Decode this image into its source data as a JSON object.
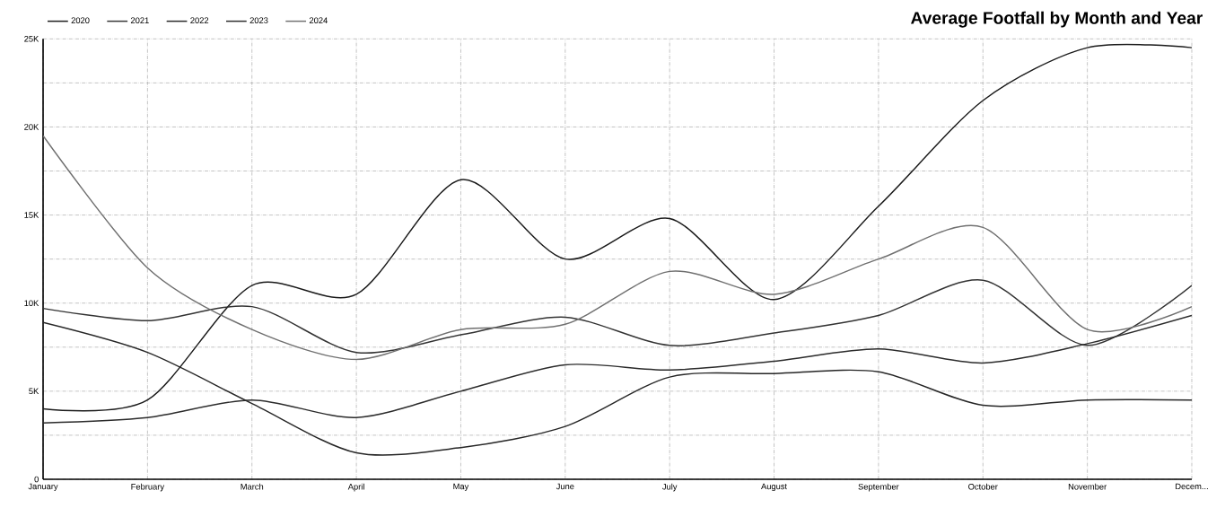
{
  "chart_data": {
    "type": "line",
    "title": "Average Footfall by Month and Year",
    "categories": [
      "January",
      "February",
      "March",
      "April",
      "May",
      "June",
      "July",
      "August",
      "September",
      "October",
      "November",
      "Decem..."
    ],
    "series": [
      {
        "name": "2020",
        "color": "#1a1a1a",
        "values": [
          4000,
          4500,
          11000,
          10500,
          17000,
          12500,
          14800,
          10200,
          15500,
          21500,
          24500,
          24500
        ]
      },
      {
        "name": "2021",
        "color": "#333333",
        "values": [
          9700,
          9000,
          9800,
          7200,
          8200,
          9200,
          7600,
          8300,
          9300,
          11300,
          7600,
          11000
        ]
      },
      {
        "name": "2022",
        "color": "#262626",
        "values": [
          8900,
          7200,
          4300,
          1500,
          1800,
          3000,
          5800,
          6000,
          6100,
          4200,
          4500,
          4500
        ]
      },
      {
        "name": "2023",
        "color": "#2b2b2b",
        "values": [
          3200,
          3500,
          4500,
          3500,
          5000,
          6500,
          6200,
          6700,
          7400,
          6600,
          7700,
          9300
        ]
      },
      {
        "name": "2024",
        "color": "#707070",
        "values": [
          19500,
          12000,
          8500,
          6800,
          8500,
          8800,
          11800,
          10500,
          12500,
          14300,
          8500,
          9800
        ]
      }
    ],
    "ylim": [
      0,
      25000
    ],
    "yticks": [
      {
        "value": 0,
        "label": "0"
      },
      {
        "value": 2500,
        "label": null
      },
      {
        "value": 5000,
        "label": "5K"
      },
      {
        "value": 7500,
        "label": null
      },
      {
        "value": 10000,
        "label": "10K"
      },
      {
        "value": 12500,
        "label": null
      },
      {
        "value": 15000,
        "label": "15K"
      },
      {
        "value": 17500,
        "label": null
      },
      {
        "value": 20000,
        "label": "20K"
      },
      {
        "value": 22500,
        "label": null
      },
      {
        "value": 25000,
        "label": "25K"
      }
    ],
    "grid": true,
    "legend": "top left",
    "marker": "none",
    "line_style": "solid"
  }
}
